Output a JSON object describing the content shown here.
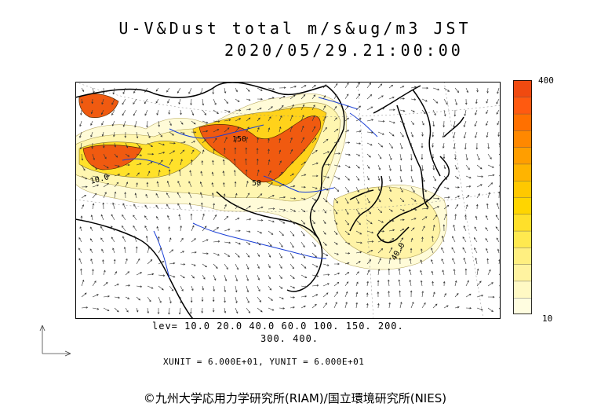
{
  "title": "U-V&Dust total m/s&ug/m3 JST",
  "datetime": "2020/05/29.21:00:00",
  "colorbar": {
    "max_label": "400",
    "min_label": "10",
    "colors": [
      "#fffde0",
      "#fff9c4",
      "#fff3a0",
      "#ffef80",
      "#ffe94f",
      "#ffe02a",
      "#ffd500",
      "#ffc800",
      "#ffb400",
      "#ff9e00",
      "#ff8800",
      "#ff7000",
      "#ff5a10",
      "#f04a10"
    ]
  },
  "levels_line1": "lev= 10.0 20.0 40.0 60.0 100. 150. 200.",
  "levels_line2": "300. 400.",
  "units_text": "XUNIT = 6.000E+01, YUNIT = 6.000E+01",
  "contour_labels": [
    "150",
    "50",
    "40.0",
    "10.0"
  ],
  "copyright": "©九州大学応用力学研究所(RIAM)/国立環境研究所(NIES)",
  "colors": {
    "coast": "#000000",
    "river": "#1a3fd6",
    "dust_high": "#f05a10"
  }
}
